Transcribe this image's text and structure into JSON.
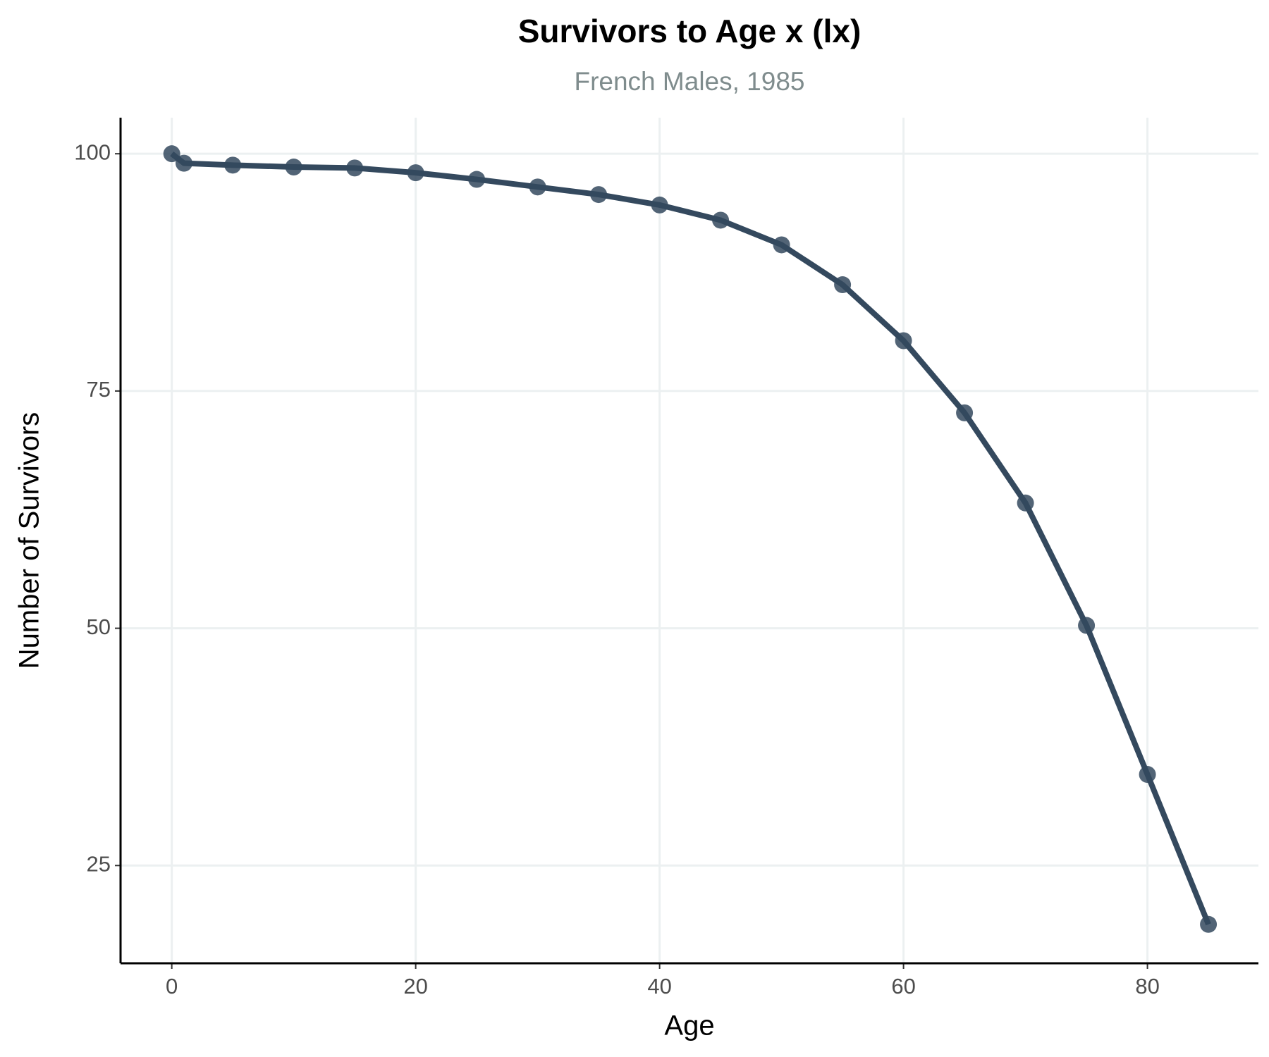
{
  "chart_data": {
    "type": "line",
    "title": "Survivors to Age x (lx)",
    "subtitle": "French Males, 1985",
    "x_label": "Age",
    "y_label": "Number of Survivors",
    "x": [
      0,
      1,
      5,
      10,
      15,
      20,
      25,
      30,
      35,
      40,
      45,
      50,
      55,
      60,
      65,
      70,
      75,
      80,
      85
    ],
    "series": [
      {
        "name": "lx",
        "color": "#34495e",
        "values": [
          100,
          99.0,
          98.8,
          98.6,
          98.5,
          98.0,
          97.3,
          96.5,
          95.7,
          94.6,
          93.0,
          90.4,
          86.2,
          80.3,
          72.7,
          63.2,
          50.3,
          34.6,
          18.8
        ]
      }
    ],
    "xlim": [
      -4.2,
      89.1
    ],
    "ylim": [
      14.7,
      103.8
    ],
    "xticks": [
      0,
      20,
      40,
      60,
      80
    ],
    "yticks": [
      25,
      50,
      75,
      100
    ],
    "grid": true,
    "legend": false
  }
}
